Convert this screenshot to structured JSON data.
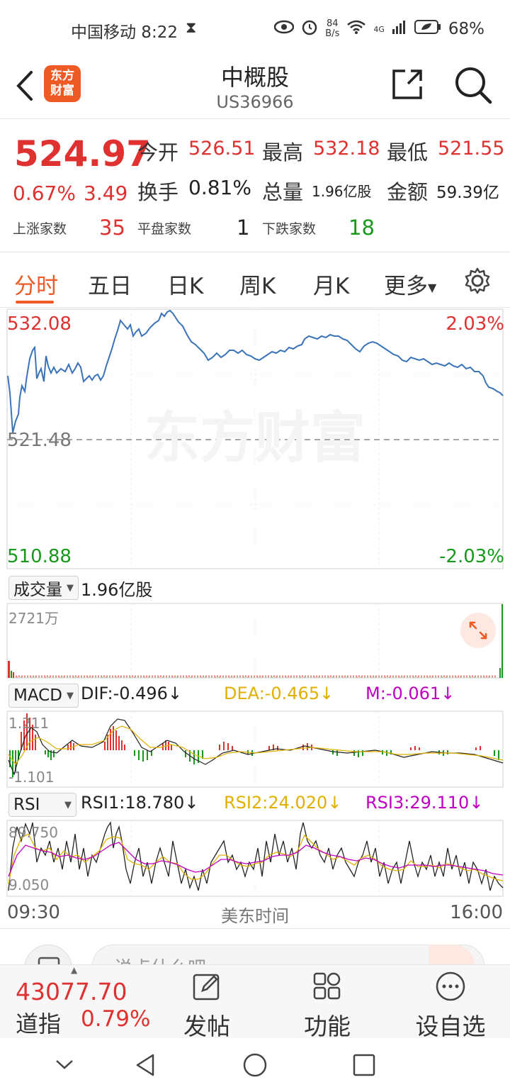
{
  "status_bar": {
    "carrier_time": "中国移动 8:22",
    "net_speed_value": "84",
    "net_speed_unit": "B/s",
    "network": "4G",
    "battery": "68%"
  },
  "header": {
    "logo_text_line1": "东方",
    "logo_text_line2": "财富",
    "title": "中概股",
    "code": "US36966"
  },
  "quote": {
    "price": "524.97",
    "change_pct": "0.67%",
    "change_abs": "3.49",
    "open_label": "今开",
    "open_value": "526.51",
    "high_label": "最高",
    "high_value": "532.18",
    "low_label": "最低",
    "low_value": "521.55",
    "turnover_label": "换手",
    "turnover_value": "0.81%",
    "volume_label": "总量",
    "volume_value": "1.96亿股",
    "amount_label": "金额",
    "amount_value": "59.39亿",
    "rise_label": "上涨家数",
    "rise_count": "35",
    "flat_label": "平盘家数",
    "flat_count": "1",
    "fall_label": "下跌家数",
    "fall_count": "18"
  },
  "tabs": [
    "分时",
    "五日",
    "日K",
    "周K",
    "月K",
    "更多"
  ],
  "price_chart": {
    "top_price": "532.08",
    "mid_price": "521.48",
    "bottom_price": "510.88",
    "top_pct": "2.03%",
    "bottom_pct": "-2.03%",
    "watermark": "东方财富",
    "line_color": "#3b73b8"
  },
  "volume": {
    "select_label": "成交量",
    "total": "1.96亿股",
    "max_label": "2721万"
  },
  "macd": {
    "select_label": "MACD",
    "dif": "DIF:-0.496↓",
    "dea": "DEA:-0.465↓",
    "m": "M:-0.061↓",
    "top_label": "1.211",
    "bottom_label": "-1.101"
  },
  "rsi": {
    "select_label": "RSI",
    "rsi1": "RSI1:18.780↓",
    "rsi2": "RSI2:24.020↓",
    "rsi3": "RSI3:29.110↓",
    "top_label": "89.750",
    "bottom_label": "9.050"
  },
  "time_axis": {
    "start": "09:30",
    "center": "美东时间",
    "end": "16:00"
  },
  "comment": {
    "placeholder": "说点什么吧"
  },
  "bottom_index": {
    "value": "43077.70",
    "name": "道指",
    "pct": "0.79%"
  },
  "toolbar": {
    "post": "发帖",
    "functions": "功能",
    "watchlist": "设自选"
  },
  "colors": {
    "accent": "#ee5a24",
    "up": "#e03131",
    "down": "#179a1b",
    "dea": "#e0b000",
    "m": "#c000c0"
  }
}
